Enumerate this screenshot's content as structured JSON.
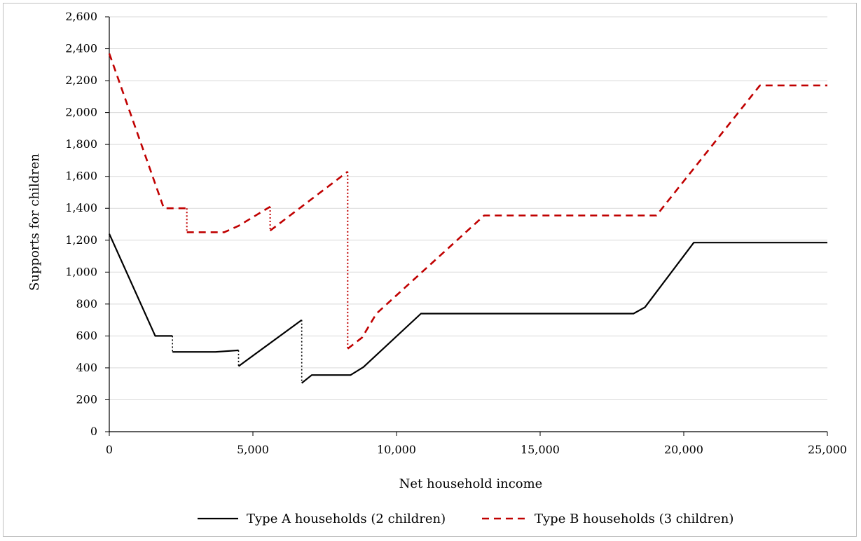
{
  "chart_data": {
    "type": "line",
    "title": "",
    "xlabel": "Net household income",
    "ylabel": "Supports for children",
    "xlim": [
      0,
      25000
    ],
    "ylim": [
      0,
      2600
    ],
    "xticks": [
      0,
      5000,
      10000,
      15000,
      20000,
      25000
    ],
    "xtick_labels": [
      "0",
      "5,000",
      "10,000",
      "15,000",
      "20,000",
      "25,000"
    ],
    "yticks": [
      0,
      200,
      400,
      600,
      800,
      1000,
      1200,
      1400,
      1600,
      1800,
      2000,
      2200,
      2400,
      2600
    ],
    "ytick_labels": [
      "0",
      "200",
      "400",
      "600",
      "800",
      "1,000",
      "1,200",
      "1,400",
      "1,600",
      "1,800",
      "2,000",
      "2,200",
      "2,400",
      "2,600"
    ],
    "grid": "horizontal",
    "legend_position": "bottom",
    "series": [
      {
        "name": "Type A households (2 children)",
        "color": "#000000",
        "style": "solid",
        "segments": [
          [
            [
              0,
              1240
            ],
            [
              1600,
              600
            ],
            [
              2200,
              600
            ]
          ],
          [
            [
              2200,
              500
            ],
            [
              3700,
              500
            ],
            [
              4500,
              510
            ]
          ],
          [
            [
              4500,
              410
            ],
            [
              6700,
              700
            ]
          ],
          [
            [
              6700,
              305
            ],
            [
              7050,
              355
            ],
            [
              8400,
              355
            ],
            [
              8850,
              405
            ],
            [
              10850,
              740
            ],
            [
              18250,
              740
            ],
            [
              18650,
              780
            ],
            [
              20350,
              1185
            ],
            [
              25000,
              1185
            ]
          ]
        ],
        "jumps": [
          [
            [
              2200,
              600
            ],
            [
              2200,
              500
            ]
          ],
          [
            [
              4500,
              510
            ],
            [
              4500,
              410
            ]
          ],
          [
            [
              6700,
              700
            ],
            [
              6700,
              305
            ]
          ]
        ]
      },
      {
        "name": "Type B households (3 children)",
        "color": "#c00000",
        "style": "dashed",
        "segments": [
          [
            [
              0,
              2370
            ],
            [
              1900,
              1400
            ],
            [
              2700,
              1400
            ]
          ],
          [
            [
              2700,
              1250
            ],
            [
              3200,
              1250
            ],
            [
              4000,
              1250
            ],
            [
              4500,
              1290
            ],
            [
              5600,
              1410
            ]
          ],
          [
            [
              5600,
              1260
            ],
            [
              8300,
              1630
            ]
          ],
          [
            [
              8300,
              520
            ],
            [
              8800,
              590
            ],
            [
              9300,
              740
            ],
            [
              13050,
              1355
            ],
            [
              19050,
              1355
            ],
            [
              22650,
              2170
            ],
            [
              25000,
              2170
            ]
          ]
        ],
        "jumps": [
          [
            [
              2700,
              1400
            ],
            [
              2700,
              1250
            ]
          ],
          [
            [
              5600,
              1410
            ],
            [
              5600,
              1260
            ]
          ],
          [
            [
              8300,
              1630
            ],
            [
              8300,
              520
            ]
          ]
        ]
      }
    ]
  }
}
